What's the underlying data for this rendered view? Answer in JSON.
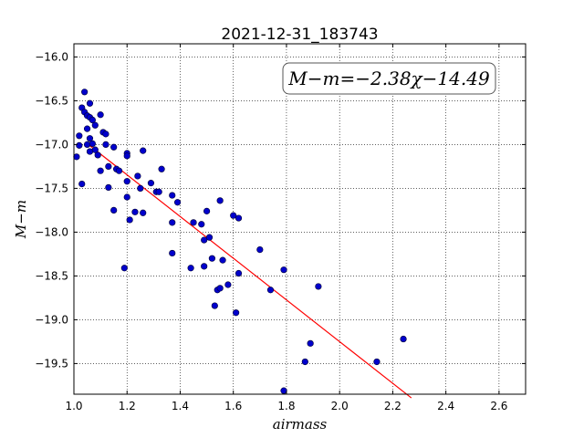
{
  "chart_data": {
    "type": "scatter",
    "title": "2021-12-31_183743",
    "xlabel": "airmass",
    "ylabel": "M−m",
    "xlim": [
      1.0,
      2.7
    ],
    "ylim": [
      -19.85,
      -15.85
    ],
    "y_inverted": true,
    "xticks": [
      1.0,
      1.2,
      1.4,
      1.6,
      1.8,
      2.0,
      2.2,
      2.4,
      2.6
    ],
    "xtick_labels": [
      "1.0",
      "1.2",
      "1.4",
      "1.6",
      "1.8",
      "2.0",
      "2.2",
      "2.4",
      "2.6"
    ],
    "yticks": [
      -16.0,
      -16.5,
      -17.0,
      -17.5,
      -18.0,
      -18.5,
      -19.0,
      -19.5
    ],
    "ytick_labels": [
      "−16.0",
      "−16.5",
      "−17.0",
      "−17.5",
      "−18.0",
      "−18.5",
      "−19.0",
      "−19.5"
    ],
    "grid": true,
    "annotation": "M−m=−2.38χ−14.49",
    "annotation_position": "top-right",
    "fit": {
      "slope": -2.38,
      "intercept": -14.49,
      "x_range": [
        1.05,
        2.27
      ]
    },
    "colors": {
      "points": "#0000cc",
      "fit_line": "#ff0000"
    },
    "points": [
      [
        1.01,
        -17.14
      ],
      [
        1.02,
        -16.9
      ],
      [
        1.02,
        -17.01
      ],
      [
        1.03,
        -17.45
      ],
      [
        1.03,
        -16.58
      ],
      [
        1.04,
        -16.4
      ],
      [
        1.04,
        -16.63
      ],
      [
        1.05,
        -16.67
      ],
      [
        1.05,
        -16.82
      ],
      [
        1.05,
        -17.0
      ],
      [
        1.06,
        -16.53
      ],
      [
        1.06,
        -16.69
      ],
      [
        1.06,
        -16.93
      ],
      [
        1.06,
        -17.08
      ],
      [
        1.07,
        -16.72
      ],
      [
        1.07,
        -16.99
      ],
      [
        1.08,
        -16.78
      ],
      [
        1.08,
        -17.06
      ],
      [
        1.09,
        -17.12
      ],
      [
        1.1,
        -16.66
      ],
      [
        1.1,
        -17.3
      ],
      [
        1.11,
        -16.86
      ],
      [
        1.12,
        -16.88
      ],
      [
        1.12,
        -17.0
      ],
      [
        1.13,
        -17.25
      ],
      [
        1.13,
        -17.49
      ],
      [
        1.15,
        -17.03
      ],
      [
        1.15,
        -17.75
      ],
      [
        1.16,
        -17.28
      ],
      [
        1.17,
        -17.3
      ],
      [
        1.19,
        -18.41
      ],
      [
        1.2,
        -17.1
      ],
      [
        1.2,
        -17.13
      ],
      [
        1.2,
        -17.42
      ],
      [
        1.2,
        -17.6
      ],
      [
        1.21,
        -17.86
      ],
      [
        1.23,
        -17.77
      ],
      [
        1.24,
        -17.36
      ],
      [
        1.25,
        -17.5
      ],
      [
        1.26,
        -17.07
      ],
      [
        1.26,
        -17.78
      ],
      [
        1.29,
        -17.44
      ],
      [
        1.31,
        -17.54
      ],
      [
        1.32,
        -17.54
      ],
      [
        1.33,
        -17.28
      ],
      [
        1.37,
        -17.58
      ],
      [
        1.37,
        -17.89
      ],
      [
        1.37,
        -18.24
      ],
      [
        1.39,
        -17.66
      ],
      [
        1.44,
        -18.41
      ],
      [
        1.45,
        -17.89
      ],
      [
        1.48,
        -17.91
      ],
      [
        1.49,
        -18.39
      ],
      [
        1.49,
        -18.09
      ],
      [
        1.5,
        -17.76
      ],
      [
        1.51,
        -18.06
      ],
      [
        1.52,
        -18.3
      ],
      [
        1.53,
        -18.84
      ],
      [
        1.54,
        -18.66
      ],
      [
        1.55,
        -18.64
      ],
      [
        1.55,
        -17.64
      ],
      [
        1.56,
        -18.32
      ],
      [
        1.58,
        -18.6
      ],
      [
        1.6,
        -17.81
      ],
      [
        1.61,
        -18.92
      ],
      [
        1.62,
        -17.84
      ],
      [
        1.62,
        -18.47
      ],
      [
        1.7,
        -18.2
      ],
      [
        1.74,
        -18.66
      ],
      [
        1.79,
        -18.43
      ],
      [
        1.79,
        -19.81
      ],
      [
        1.87,
        -19.48
      ],
      [
        1.89,
        -19.27
      ],
      [
        1.92,
        -18.62
      ],
      [
        2.14,
        -19.48
      ],
      [
        2.24,
        -19.22
      ]
    ]
  }
}
